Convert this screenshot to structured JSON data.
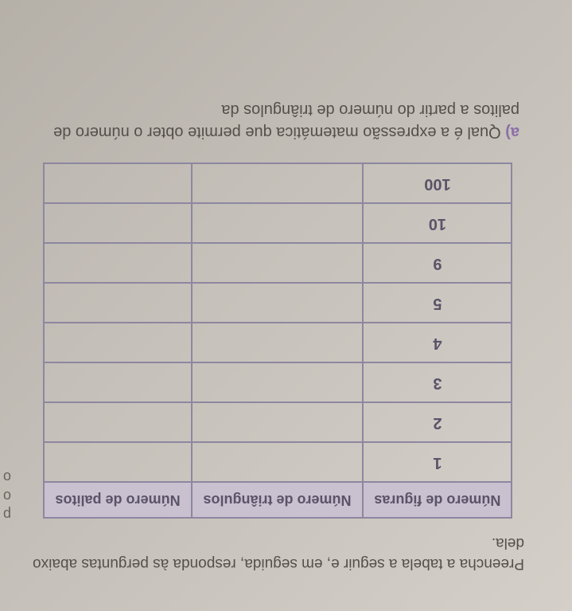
{
  "intro": "Preencha a tabela a seguir e, em seguida, responda às perguntas abaixo dela.",
  "table": {
    "headers": [
      "Número de figuras",
      "Número de triângulos",
      "Número de palitos"
    ],
    "rows": [
      [
        "1",
        "",
        ""
      ],
      [
        "2",
        "",
        ""
      ],
      [
        "3",
        "",
        ""
      ],
      [
        "4",
        "",
        ""
      ],
      [
        "5",
        "",
        ""
      ],
      [
        "9",
        "",
        ""
      ],
      [
        "10",
        "",
        ""
      ],
      [
        "100",
        "",
        ""
      ]
    ]
  },
  "question": {
    "label": "a)",
    "text": " Qual é a expressão matemática que permite obter o número de palitos a partir do número de triângulos da"
  },
  "side": [
    "p",
    "o",
    "o"
  ]
}
